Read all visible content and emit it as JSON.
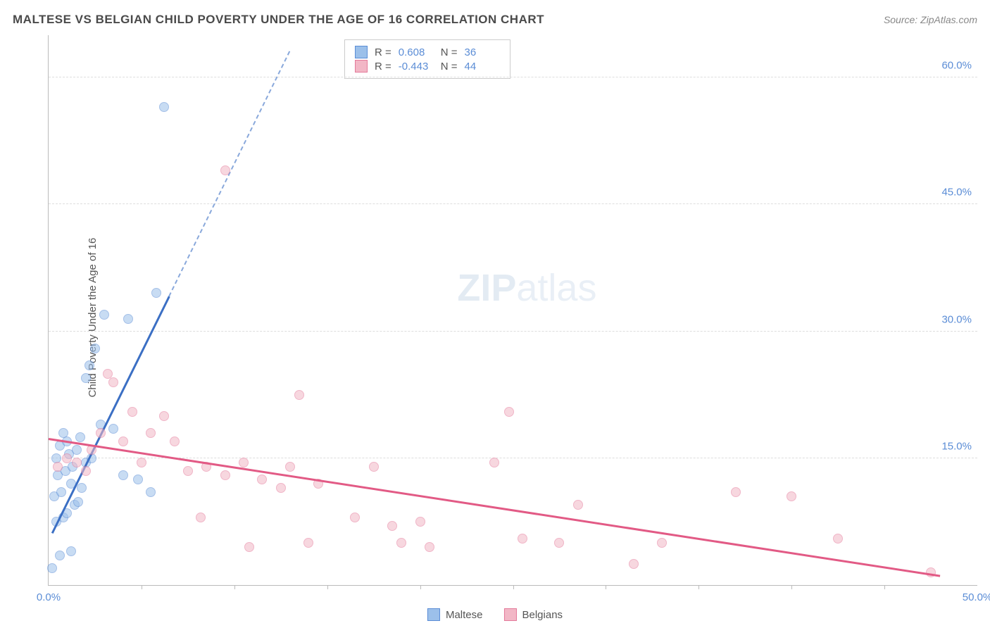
{
  "header": {
    "title": "MALTESE VS BELGIAN CHILD POVERTY UNDER THE AGE OF 16 CORRELATION CHART",
    "source": "Source: ZipAtlas.com"
  },
  "chart": {
    "type": "scatter",
    "ylabel": "Child Poverty Under the Age of 16",
    "watermark_a": "ZIP",
    "watermark_b": "atlas",
    "background_color": "#ffffff",
    "grid_color": "#dddddd",
    "axis_color": "#bbbbbb",
    "tick_label_color": "#5b8dd6",
    "xlim": [
      0,
      50
    ],
    "ylim": [
      0,
      65
    ],
    "yticks": [
      {
        "value": 15,
        "label": "15.0%"
      },
      {
        "value": 30,
        "label": "30.0%"
      },
      {
        "value": 45,
        "label": "45.0%"
      },
      {
        "value": 60,
        "label": "60.0%"
      }
    ],
    "xticks_major": [
      {
        "value": 0,
        "label": "0.0%"
      },
      {
        "value": 50,
        "label": "50.0%"
      }
    ],
    "xticks_minor": [
      5,
      10,
      15,
      20,
      25,
      30,
      35,
      40,
      45
    ],
    "series": [
      {
        "name": "Maltese",
        "R": "0.608",
        "N": "36",
        "fill_color": "#9cc0ea",
        "stroke_color": "#5b8dd6",
        "marker_size": 14,
        "fill_opacity": 0.55,
        "trend": {
          "color": "#3b6fc4",
          "width": 2.5,
          "x1": 0.2,
          "y1": 6.0,
          "x2": 6.5,
          "y2": 34.0,
          "dash_x2": 13.0,
          "dash_y2": 63.0
        },
        "points": [
          [
            0.2,
            2.0
          ],
          [
            0.6,
            3.5
          ],
          [
            1.2,
            4.0
          ],
          [
            0.4,
            7.5
          ],
          [
            0.8,
            8.0
          ],
          [
            1.0,
            8.5
          ],
          [
            1.4,
            9.5
          ],
          [
            1.6,
            9.8
          ],
          [
            0.3,
            10.5
          ],
          [
            0.7,
            11.0
          ],
          [
            1.2,
            12.0
          ],
          [
            1.8,
            11.5
          ],
          [
            0.5,
            13.0
          ],
          [
            0.9,
            13.5
          ],
          [
            1.3,
            14.0
          ],
          [
            2.0,
            14.5
          ],
          [
            0.4,
            15.0
          ],
          [
            1.1,
            15.5
          ],
          [
            1.5,
            16.0
          ],
          [
            2.3,
            15.0
          ],
          [
            0.6,
            16.5
          ],
          [
            1.0,
            17.0
          ],
          [
            1.7,
            17.5
          ],
          [
            0.8,
            18.0
          ],
          [
            2.8,
            19.0
          ],
          [
            4.8,
            12.5
          ],
          [
            5.5,
            11.0
          ],
          [
            3.5,
            18.5
          ],
          [
            2.2,
            26.0
          ],
          [
            2.0,
            24.5
          ],
          [
            2.5,
            28.0
          ],
          [
            3.0,
            32.0
          ],
          [
            4.3,
            31.5
          ],
          [
            5.8,
            34.5
          ],
          [
            6.2,
            56.5
          ],
          [
            4.0,
            13.0
          ]
        ]
      },
      {
        "name": "Belgians",
        "R": "-0.443",
        "N": "44",
        "fill_color": "#f2b7c6",
        "stroke_color": "#e47a9a",
        "marker_size": 14,
        "fill_opacity": 0.55,
        "trend": {
          "color": "#e25a85",
          "width": 2.5,
          "x1": 0.0,
          "y1": 17.2,
          "x2": 48.0,
          "y2": 1.0
        },
        "points": [
          [
            0.5,
            14.0
          ],
          [
            1.0,
            15.0
          ],
          [
            1.5,
            14.5
          ],
          [
            2.0,
            13.5
          ],
          [
            2.3,
            16.0
          ],
          [
            2.8,
            18.0
          ],
          [
            3.2,
            25.0
          ],
          [
            3.5,
            24.0
          ],
          [
            4.0,
            17.0
          ],
          [
            4.5,
            20.5
          ],
          [
            5.0,
            14.5
          ],
          [
            5.5,
            18.0
          ],
          [
            6.2,
            20.0
          ],
          [
            6.8,
            17.0
          ],
          [
            7.5,
            13.5
          ],
          [
            8.2,
            8.0
          ],
          [
            8.5,
            14.0
          ],
          [
            9.5,
            13.0
          ],
          [
            9.5,
            49.0
          ],
          [
            10.5,
            14.5
          ],
          [
            10.8,
            4.5
          ],
          [
            11.5,
            12.5
          ],
          [
            12.5,
            11.5
          ],
          [
            13.0,
            14.0
          ],
          [
            13.5,
            22.5
          ],
          [
            14.0,
            5.0
          ],
          [
            14.5,
            12.0
          ],
          [
            16.5,
            8.0
          ],
          [
            17.5,
            14.0
          ],
          [
            18.5,
            7.0
          ],
          [
            19.0,
            5.0
          ],
          [
            20.0,
            7.5
          ],
          [
            20.5,
            4.5
          ],
          [
            24.0,
            14.5
          ],
          [
            24.8,
            20.5
          ],
          [
            25.5,
            5.5
          ],
          [
            27.5,
            5.0
          ],
          [
            28.5,
            9.5
          ],
          [
            31.5,
            2.5
          ],
          [
            33.0,
            5.0
          ],
          [
            37.0,
            11.0
          ],
          [
            40.0,
            10.5
          ],
          [
            42.5,
            5.5
          ],
          [
            47.5,
            1.5
          ]
        ]
      }
    ],
    "legend_bottom": [
      {
        "label": "Maltese",
        "fill": "#9cc0ea",
        "stroke": "#5b8dd6"
      },
      {
        "label": "Belgians",
        "fill": "#f2b7c6",
        "stroke": "#e47a9a"
      }
    ]
  }
}
